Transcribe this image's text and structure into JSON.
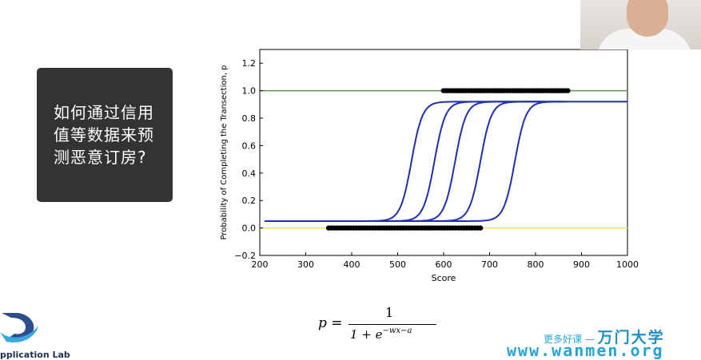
{
  "question": "如何通过信用值等数据来预测恶意订房?",
  "formula": {
    "lhs": "p =",
    "numerator": "1",
    "denominator": "1 + e",
    "exponent": "−wx−a"
  },
  "logo": {
    "text": "pplication Lab"
  },
  "watermark": {
    "tagline": "更多好课 —",
    "brand": "万门大学",
    "url": "www.wanmen.org"
  },
  "colors": {
    "upper_line": "#5a9a4a",
    "lower_line": "#f0e060",
    "curve": "#1f2fb0",
    "points": "#000000",
    "card": "#333333"
  },
  "chart_data": {
    "type": "line",
    "xlabel": "Score",
    "ylabel": "Probability of Completing the Transection, p",
    "xlim": [
      200,
      1000
    ],
    "ylim": [
      -0.2,
      1.3
    ],
    "xticks": [
      200,
      300,
      400,
      500,
      600,
      700,
      800,
      900,
      1000
    ],
    "yticks": [
      -0.2,
      0.0,
      0.2,
      0.4,
      0.6,
      0.8,
      1.0,
      1.2
    ],
    "ytick_labels": [
      "−0.2",
      "0.0",
      "0.2",
      "0.4",
      "0.6",
      "0.8",
      "1.0",
      "1.2"
    ],
    "reference_lines": [
      {
        "y": 1.0,
        "color": "upper"
      },
      {
        "y": 0.0,
        "color": "lower"
      }
    ],
    "logistic_curves": [
      {
        "x_start": 210,
        "x_end": 820,
        "midpoint": 530,
        "low": 0.05,
        "high": 0.92
      },
      {
        "x_start": 275,
        "x_end": 845,
        "midpoint": 580,
        "low": 0.05,
        "high": 0.92
      },
      {
        "x_start": 340,
        "x_end": 860,
        "midpoint": 625,
        "low": 0.05,
        "high": 0.92
      },
      {
        "x_start": 400,
        "x_end": 870,
        "midpoint": 680,
        "low": 0.05,
        "high": 0.92
      },
      {
        "x_start": 450,
        "x_end": 1000,
        "midpoint": 755,
        "low": 0.05,
        "high": 0.92
      }
    ],
    "points_at_1": {
      "x_from": 600,
      "x_to": 870,
      "y": 1.0
    },
    "points_at_0": {
      "x_from": 350,
      "x_to": 680,
      "y": 0.0
    }
  }
}
